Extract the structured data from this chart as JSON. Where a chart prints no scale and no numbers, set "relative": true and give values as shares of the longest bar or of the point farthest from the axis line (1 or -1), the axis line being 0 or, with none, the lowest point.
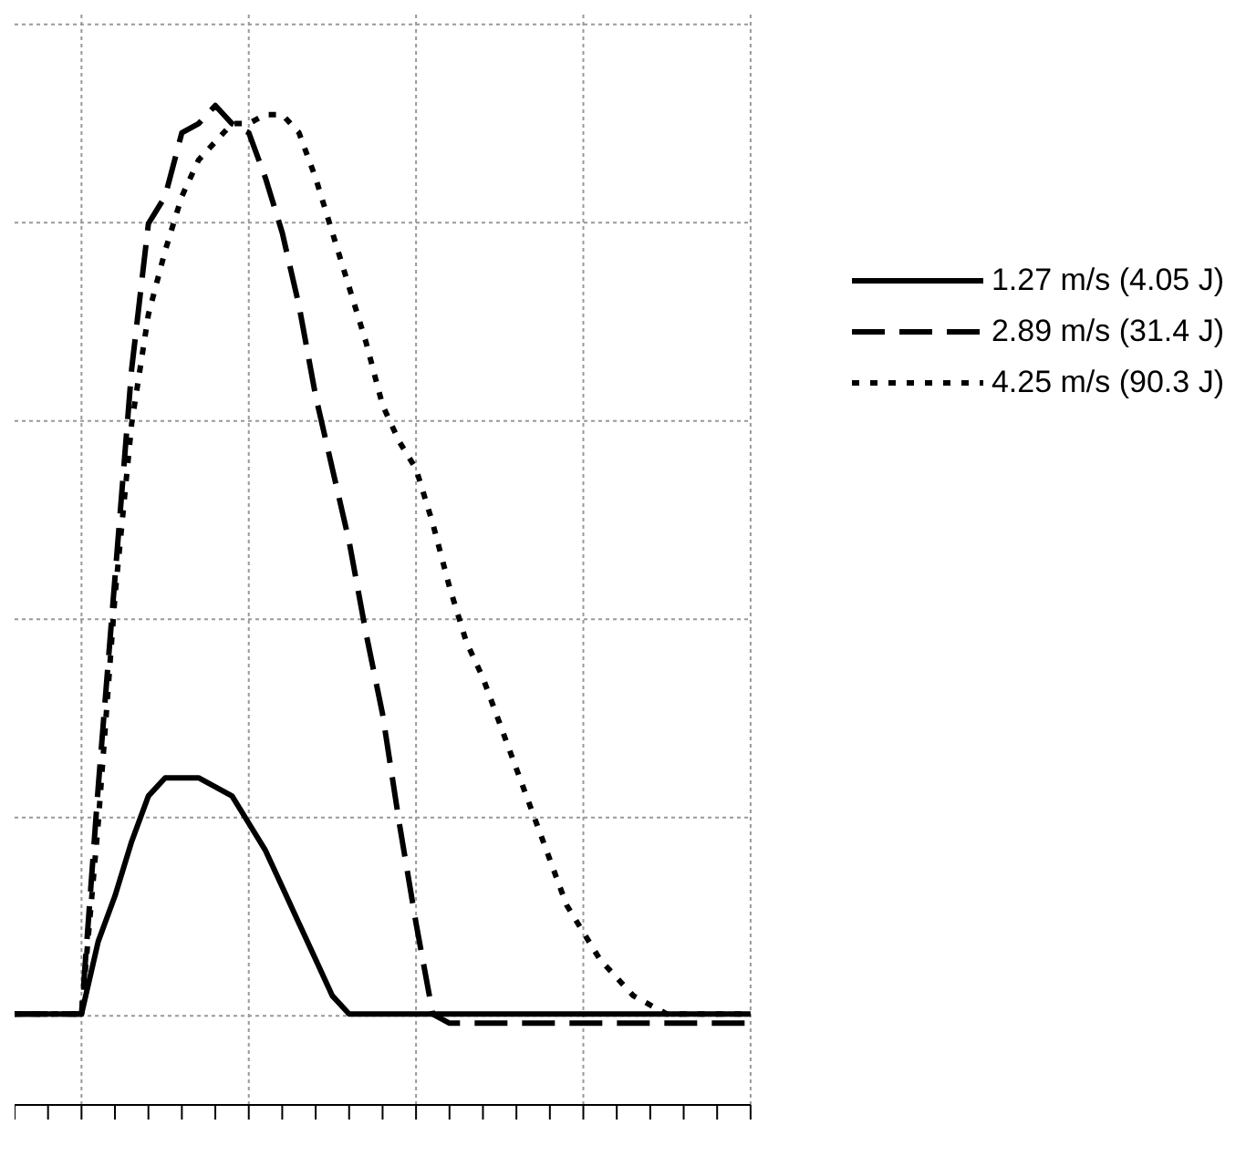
{
  "chart_data": {
    "type": "line",
    "relative": true,
    "grid": true,
    "legend": "top right",
    "tick_labels": false,
    "categories": [
      null,
      null,
      null,
      null,
      null,
      null,
      null,
      null,
      null,
      null,
      null,
      null,
      null,
      null,
      null,
      null,
      null,
      null,
      null,
      null,
      null,
      null,
      null,
      null,
      null,
      null,
      null,
      null,
      null,
      null,
      null,
      null,
      null,
      null,
      null,
      null,
      null,
      null,
      null,
      null,
      null,
      null,
      null,
      null,
      null
    ],
    "series": [
      {
        "name": "1.27 m/s (4.05 J)",
        "color": "#000000",
        "line_style": "solid",
        "values": [
          0,
          0,
          0,
          0,
          0,
          0.08,
          0.13,
          0.19,
          0.24,
          0.26,
          0.26,
          0.26,
          0.25,
          0.24,
          0.21,
          0.18,
          0.14,
          0.1,
          0.06,
          0.02,
          0,
          0,
          0,
          0,
          0,
          0,
          0,
          0,
          0,
          0,
          0,
          0,
          0,
          0,
          0,
          0,
          0,
          0,
          0,
          0,
          0,
          0,
          0,
          0,
          0
        ]
      },
      {
        "name": "2.89 m/s (31.4 J)",
        "color": "#000000",
        "line_style": "dashed",
        "values": [
          0,
          0,
          0,
          0,
          0,
          0.25,
          0.48,
          0.71,
          0.87,
          0.9,
          0.97,
          0.98,
          1,
          0.98,
          0.97,
          0.92,
          0.86,
          0.78,
          0.68,
          0.6,
          0.52,
          0.42,
          0.33,
          0.21,
          0.1,
          0,
          -0.01,
          -0.01,
          -0.01,
          -0.01,
          -0.01,
          -0.01,
          -0.01,
          -0.01,
          -0.01,
          -0.01,
          -0.01,
          -0.01,
          -0.01,
          -0.01,
          -0.01,
          -0.01,
          -0.01,
          -0.01,
          -0.01
        ]
      },
      {
        "name": "4.25 m/s (90.3 J)",
        "color": "#000000",
        "line_style": "dotted",
        "values": [
          0,
          0,
          0,
          0,
          0,
          0.21,
          0.46,
          0.65,
          0.77,
          0.84,
          0.9,
          0.94,
          0.96,
          0.98,
          0.98,
          0.99,
          0.99,
          0.97,
          0.92,
          0.86,
          0.8,
          0.74,
          0.67,
          0.63,
          0.6,
          0.54,
          0.47,
          0.41,
          0.37,
          0.32,
          0.27,
          0.22,
          0.17,
          0.12,
          0.09,
          0.06,
          0.04,
          0.02,
          0.01,
          0,
          0,
          0,
          0,
          0,
          0
        ]
      }
    ]
  }
}
